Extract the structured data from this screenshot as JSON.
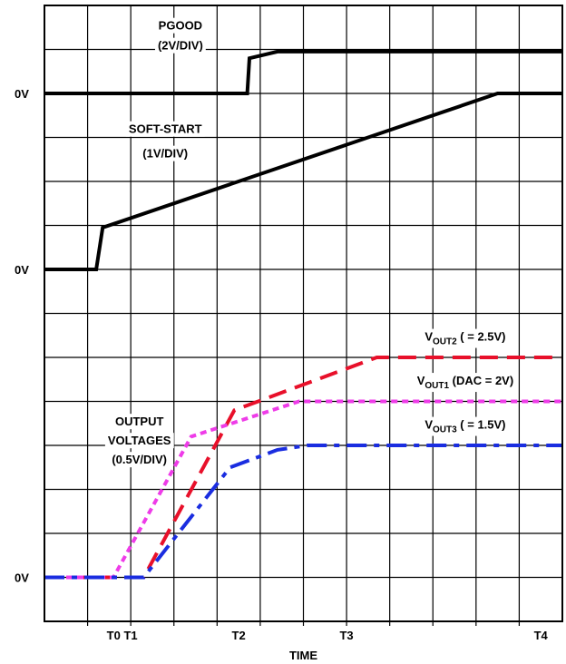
{
  "chart_data": {
    "type": "line",
    "title": "",
    "xlabel": "TIME",
    "ylabel": "",
    "grid": true,
    "x_ticks": [
      {
        "label": "T0 T1",
        "x": 1.8
      },
      {
        "label": "T2",
        "x": 4.5
      },
      {
        "label": "T3",
        "x": 7.0
      },
      {
        "label": "T4",
        "x": 11.5
      }
    ],
    "zero_labels": [
      {
        "label": "0V",
        "y": 12
      },
      {
        "label": "0V",
        "y": 8
      },
      {
        "label": "0V",
        "y": 1
      }
    ],
    "annotations": [
      {
        "name": "pgood",
        "lines": [
          "PGOOD",
          "(2V/DIV)"
        ]
      },
      {
        "name": "soft-start",
        "lines": [
          "SOFT-START",
          "(1V/DIV)"
        ]
      },
      {
        "name": "output",
        "lines": [
          "OUTPUT",
          "VOLTAGES",
          "(0.5V/DIV)"
        ]
      }
    ],
    "series": [
      {
        "name": "PGOOD",
        "color": "#000000",
        "style": "solid",
        "points": [
          [
            0,
            12
          ],
          [
            4.7,
            12
          ],
          [
            4.75,
            12.8
          ],
          [
            5.4,
            12.95
          ],
          [
            12,
            12.95
          ]
        ]
      },
      {
        "name": "SOFT-START",
        "color": "#000000",
        "style": "solid",
        "points": [
          [
            0,
            8
          ],
          [
            1.2,
            8
          ],
          [
            1.35,
            8.95
          ],
          [
            10.5,
            12
          ],
          [
            12,
            12
          ]
        ]
      },
      {
        "name": "VOUT2",
        "label": "V",
        "sub": "OUT2",
        "tail": " ( = 2.5V)",
        "color": "#e8102a",
        "style": "dash",
        "points": [
          [
            0,
            1
          ],
          [
            2.3,
            1
          ],
          [
            4.4,
            4.8
          ],
          [
            7.7,
            6.0
          ],
          [
            8.0,
            6.0
          ],
          [
            12,
            6.0
          ]
        ]
      },
      {
        "name": "VOUT1",
        "label": "V",
        "sub": "OUT1",
        "tail": " (DAC = 2V)",
        "color": "#ee3ce8",
        "style": "dot",
        "points": [
          [
            0,
            1
          ],
          [
            1.6,
            1
          ],
          [
            3.4,
            4.2
          ],
          [
            5.9,
            5.0
          ],
          [
            12,
            5.0
          ]
        ]
      },
      {
        "name": "VOUT3",
        "label": "V",
        "sub": "OUT3",
        "tail": " ( = 1.5V)",
        "color": "#1a2de0",
        "style": "dashdot",
        "points": [
          [
            0,
            1
          ],
          [
            2.3,
            1
          ],
          [
            4.3,
            3.5
          ],
          [
            5.4,
            3.9
          ],
          [
            6.1,
            4.0
          ],
          [
            12,
            4.0
          ]
        ]
      }
    ],
    "xlim": [
      0,
      12
    ],
    "ylim": [
      0,
      14
    ]
  }
}
